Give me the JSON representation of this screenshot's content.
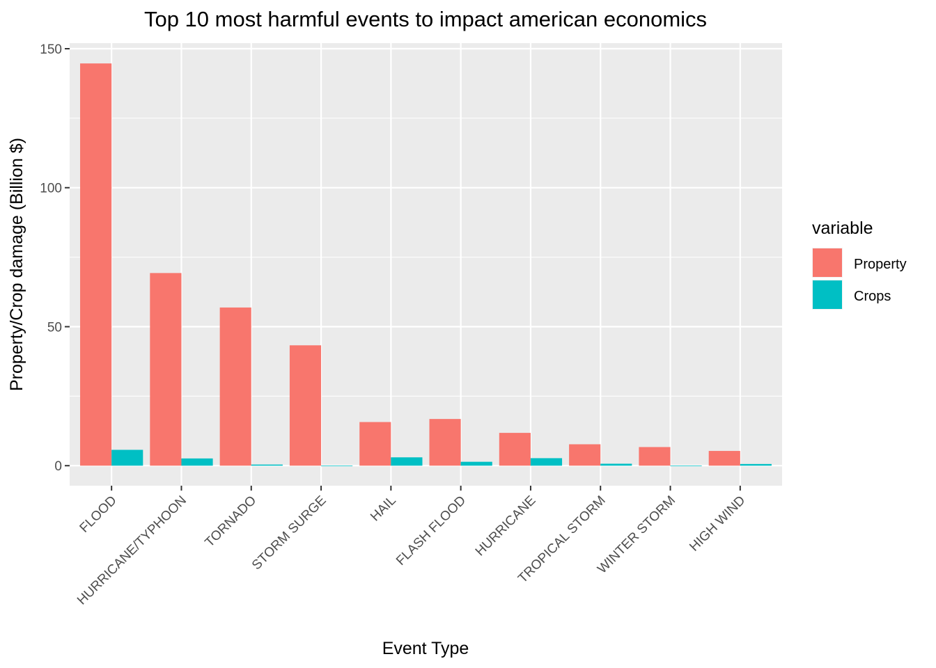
{
  "chart_data": {
    "type": "bar",
    "title": "Top 10 most harmful events to impact american economics",
    "xlabel": "Event Type",
    "ylabel": "Property/Crop damage (Billion $)",
    "categories": [
      "FLOOD",
      "HURRICANE/TYPHOON",
      "TORNADO",
      "STORM SURGE",
      "HAIL",
      "FLASH FLOOD",
      "HURRICANE",
      "TROPICAL STORM",
      "WINTER STORM",
      "HIGH WIND"
    ],
    "series": [
      {
        "name": "Property",
        "color": "#F8766D",
        "values": [
          144.7,
          69.3,
          56.9,
          43.3,
          15.7,
          16.8,
          11.8,
          7.7,
          6.7,
          5.3
        ]
      },
      {
        "name": "Crops",
        "color": "#00BFC4",
        "values": [
          5.7,
          2.6,
          0.4,
          0.0,
          3.0,
          1.4,
          2.7,
          0.7,
          0.0,
          0.6
        ]
      }
    ],
    "ylim": [
      -7.2,
      152.0
    ],
    "yticks": [
      0,
      50,
      100,
      150
    ],
    "grid": true,
    "legend": {
      "title": "variable",
      "position": "right"
    },
    "panel_background": "#EBEBEB",
    "grid_color": "#FFFFFF"
  }
}
